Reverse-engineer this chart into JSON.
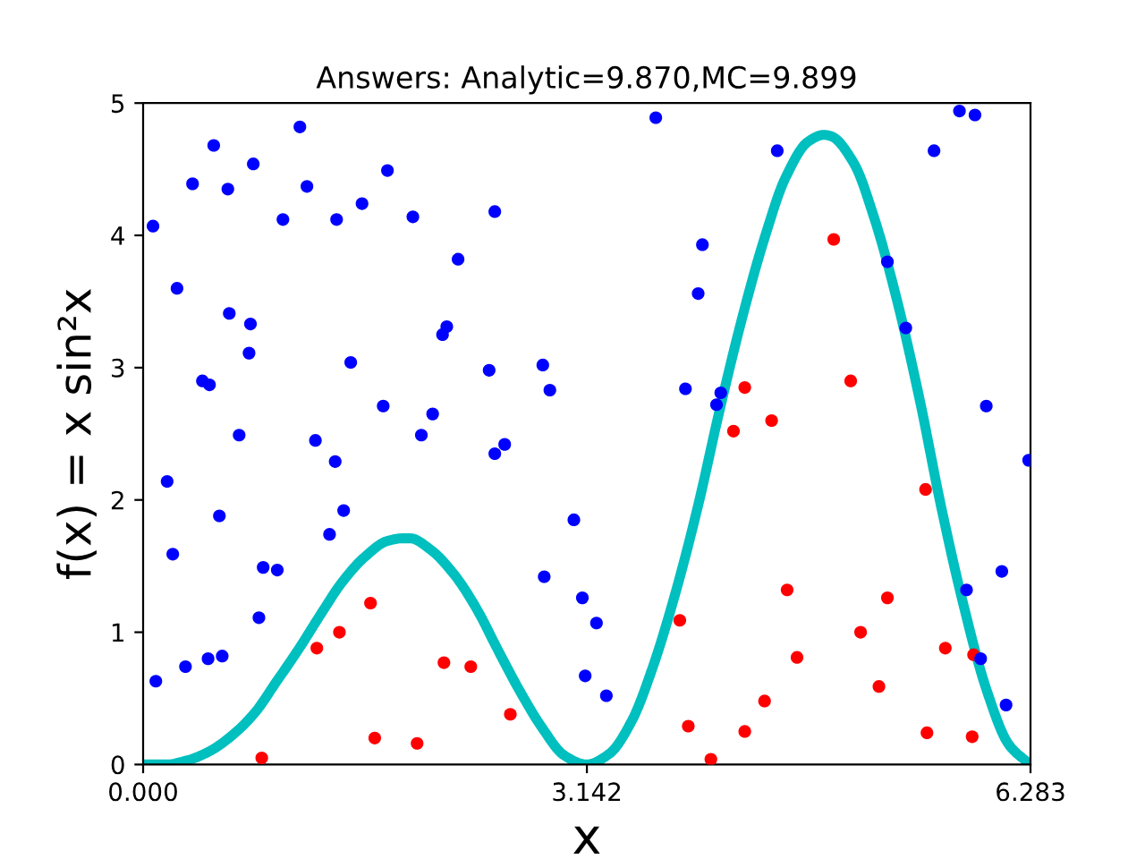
{
  "chart_data": {
    "type": "scatter",
    "title": "Answers: Analytic=9.870,MC=9.899",
    "xlabel": "x",
    "ylabel": "f(x) = x sin²x",
    "xlim": [
      0,
      6.283
    ],
    "ylim": [
      0,
      5
    ],
    "xticks": [
      {
        "value": 0,
        "label": "0.000"
      },
      3.142,
      6.283
    ],
    "yticks": [
      0,
      1,
      2,
      3,
      4,
      5
    ],
    "marker": "circle",
    "series": [
      {
        "type": "line",
        "marker": "none",
        "color": "#00bfbf",
        "x": [
          0,
          0.16,
          0.31,
          0.47,
          0.63,
          0.79,
          0.94,
          1.1,
          1.26,
          1.41,
          1.57,
          1.73,
          1.84,
          1.89,
          2.04,
          2.2,
          2.36,
          2.51,
          2.67,
          2.83,
          2.98,
          3.14,
          3.3,
          3.46,
          3.61,
          3.77,
          3.93,
          4.08,
          4.24,
          4.4,
          4.55,
          4.71,
          4.82,
          4.87,
          5.03,
          5.18,
          5.34,
          5.5,
          5.65,
          5.81,
          5.97,
          6.13,
          6.28
        ],
        "values": [
          0,
          0.0,
          0.03,
          0.1,
          0.22,
          0.39,
          0.62,
          0.87,
          1.14,
          1.38,
          1.57,
          1.69,
          1.71,
          1.71,
          1.62,
          1.44,
          1.18,
          0.87,
          0.55,
          0.27,
          0.07,
          0,
          0.08,
          0.33,
          0.74,
          1.3,
          1.96,
          2.67,
          3.37,
          3.98,
          4.44,
          4.71,
          4.76,
          4.75,
          4.55,
          4.12,
          3.5,
          2.75,
          1.95,
          1.2,
          0.57,
          0.15,
          0
        ]
      },
      {
        "color": "#ff0000",
        "x": [
          0.84,
          1.23,
          1.39,
          1.61,
          1.64,
          1.94,
          2.13,
          2.32,
          2.6,
          3.8,
          3.86,
          4.02,
          4.18,
          4.26,
          4.26,
          4.4,
          4.45,
          4.56,
          4.63,
          4.89,
          5.01,
          5.08,
          5.21,
          5.27,
          5.54,
          5.55,
          5.68,
          5.87,
          5.88
        ],
        "values": [
          0.05,
          0.88,
          1.0,
          1.22,
          0.2,
          0.16,
          0.77,
          0.74,
          0.38,
          1.09,
          0.29,
          0.04,
          2.52,
          2.85,
          0.25,
          0.48,
          2.6,
          1.32,
          0.81,
          3.97,
          2.9,
          1.0,
          0.59,
          1.26,
          2.08,
          0.24,
          0.88,
          0.21,
          0.83
        ]
      },
      {
        "color": "#0000ff",
        "x": [
          0.07,
          0.09,
          0.17,
          0.21,
          0.24,
          0.3,
          0.35,
          0.42,
          0.46,
          0.47,
          0.5,
          0.54,
          0.56,
          0.6,
          0.61,
          0.68,
          0.75,
          0.76,
          0.78,
          0.82,
          0.85,
          0.95,
          0.99,
          1.11,
          1.16,
          1.22,
          1.32,
          1.36,
          1.37,
          1.42,
          1.47,
          1.55,
          1.7,
          1.73,
          1.91,
          1.97,
          2.05,
          2.12,
          2.15,
          2.23,
          2.45,
          2.49,
          2.49,
          2.56,
          2.83,
          2.84,
          2.88,
          3.05,
          3.11,
          3.13,
          3.21,
          3.28,
          3.63,
          3.84,
          3.93,
          3.96,
          4.06,
          4.09,
          4.49,
          5.27,
          5.4,
          5.6,
          5.78,
          5.89,
          5.83,
          5.93,
          5.97,
          6.08,
          6.11,
          6.27
        ],
        "values": [
          4.07,
          0.63,
          2.14,
          1.59,
          3.6,
          0.74,
          4.39,
          2.9,
          0.8,
          2.87,
          4.68,
          1.88,
          0.82,
          4.35,
          3.41,
          2.49,
          3.11,
          3.33,
          4.54,
          1.11,
          1.49,
          1.47,
          4.12,
          4.82,
          4.37,
          2.45,
          1.74,
          2.29,
          4.12,
          1.92,
          3.04,
          4.24,
          2.71,
          4.49,
          4.14,
          2.49,
          2.65,
          3.25,
          3.31,
          3.82,
          2.98,
          4.18,
          2.35,
          2.42,
          3.02,
          1.42,
          2.83,
          1.85,
          1.26,
          0.67,
          1.07,
          0.52,
          4.89,
          2.84,
          3.56,
          3.93,
          2.72,
          2.81,
          4.64,
          3.8,
          3.3,
          4.64,
          4.94,
          4.91,
          1.32,
          0.8,
          2.71,
          1.46,
          0.45,
          2.3
        ]
      }
    ]
  }
}
